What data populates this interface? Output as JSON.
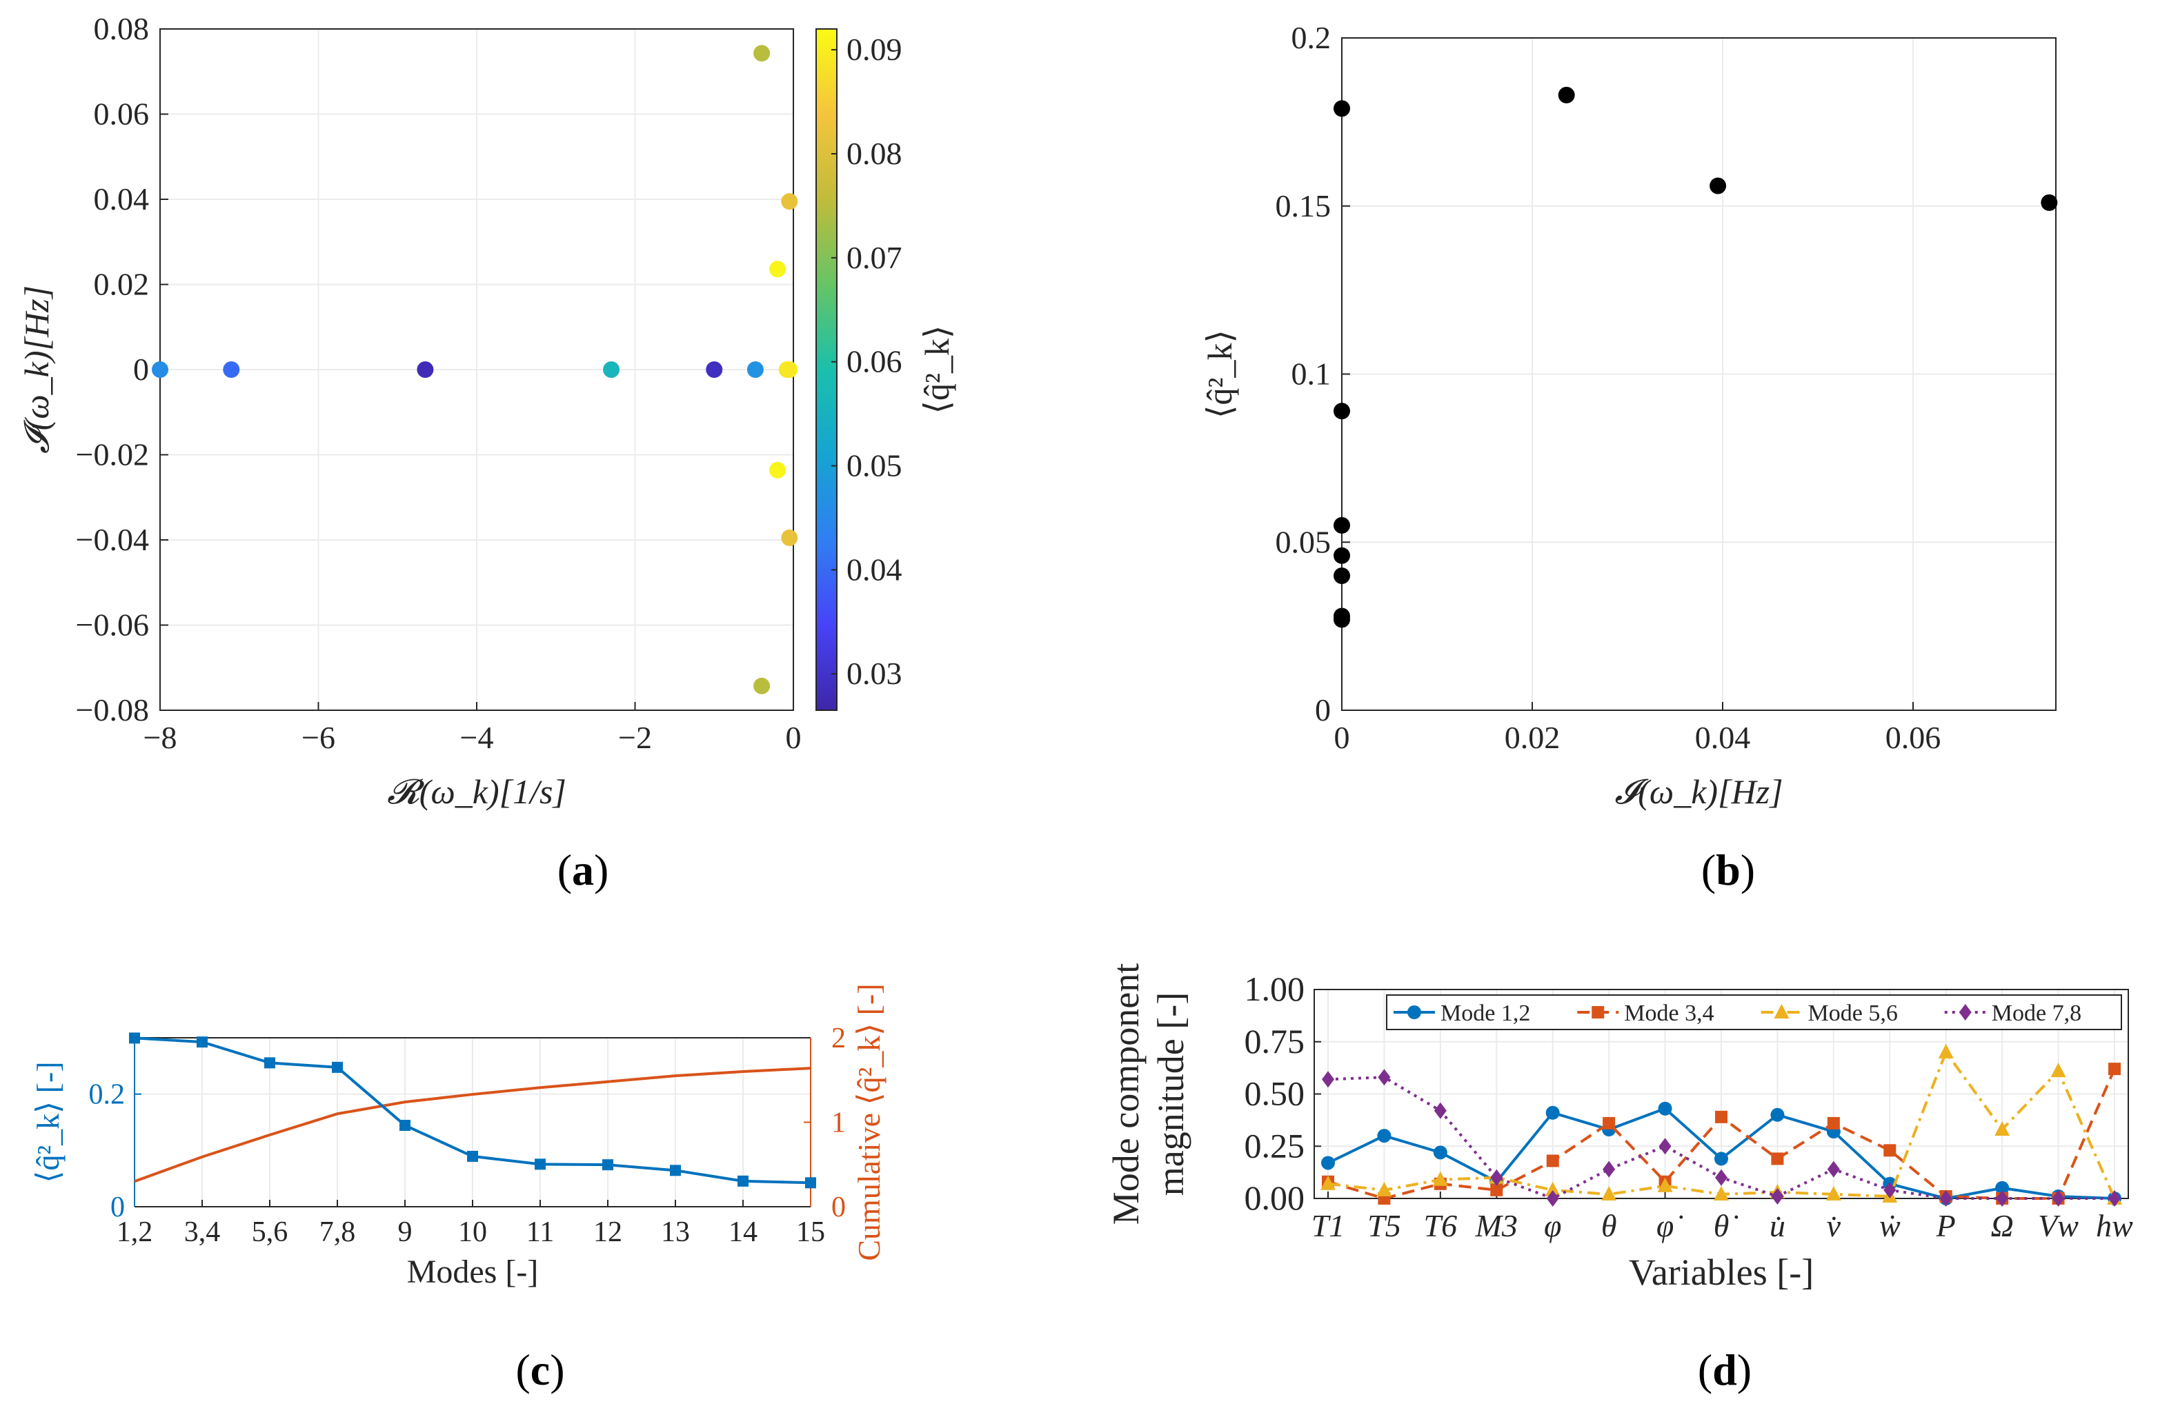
{
  "captions": {
    "a": "a",
    "b": "b",
    "c": "c",
    "d": "d"
  },
  "chart_data": [
    {
      "id": "a",
      "type": "scatter",
      "title": "",
      "xlabel": "𝓡(ω_k)[1/s]",
      "ylabel": "𝓘(ω_k)[Hz]",
      "xlim": [
        -8,
        0
      ],
      "ylim": [
        -0.08,
        0.08
      ],
      "xticks": [
        -8,
        -6,
        -4,
        -2,
        0
      ],
      "xtick_labels": [
        "−8",
        "−6",
        "−4",
        "−2",
        "0"
      ],
      "yticks": [
        -0.08,
        -0.06,
        -0.04,
        -0.02,
        0,
        0.02,
        0.04,
        0.06,
        0.08
      ],
      "ytick_labels": [
        "−0.08",
        "−0.06",
        "−0.04",
        "−0.02",
        "0",
        "0.02",
        "0.04",
        "0.06",
        "0.08"
      ],
      "grid": true,
      "points": [
        {
          "x": -8.0,
          "y": 0,
          "c": 0.046
        },
        {
          "x": -7.1,
          "y": 0,
          "c": 0.04
        },
        {
          "x": -4.65,
          "y": 0,
          "c": 0.028
        },
        {
          "x": -2.3,
          "y": 0,
          "c": 0.056
        },
        {
          "x": -1.0,
          "y": 0,
          "c": 0.029
        },
        {
          "x": -0.48,
          "y": 0,
          "c": 0.047
        },
        {
          "x": -0.05,
          "y": 0,
          "c": 0.09
        },
        {
          "x": -0.08,
          "y": 0,
          "c": 0.089
        },
        {
          "x": -0.4,
          "y": 0.0743,
          "c": 0.075
        },
        {
          "x": -0.4,
          "y": -0.0743,
          "c": 0.075
        },
        {
          "x": -0.05,
          "y": 0.0395,
          "c": 0.082
        },
        {
          "x": -0.05,
          "y": -0.0395,
          "c": 0.082
        },
        {
          "x": -0.2,
          "y": 0.0236,
          "c": 0.091
        },
        {
          "x": -0.2,
          "y": -0.0236,
          "c": 0.091
        }
      ],
      "colorbar": {
        "label": "⟨q̂²_k⟩",
        "range": [
          0.0265,
          0.092
        ],
        "ticks": [
          0.03,
          0.04,
          0.05,
          0.06,
          0.07,
          0.08,
          0.09
        ],
        "tick_labels": [
          "0.03",
          "0.04",
          "0.05",
          "0.06",
          "0.07",
          "0.08",
          "0.09"
        ],
        "colormap": [
          "#3e26a8",
          "#4743f8",
          "#2f7ff2",
          "#16a4d2",
          "#1ac0ab",
          "#66c465",
          "#c0bc3a",
          "#f5c43c",
          "#f9fb15"
        ]
      }
    },
    {
      "id": "b",
      "type": "scatter",
      "title": "",
      "xlabel": "𝓘(ω_k)[Hz]",
      "ylabel": "⟨q̂²_k⟩",
      "xlim": [
        0,
        0.075
      ],
      "ylim": [
        0,
        0.2
      ],
      "xticks": [
        0,
        0.02,
        0.04,
        0.06
      ],
      "xtick_labels": [
        "0",
        "0.02",
        "0.04",
        "0.06"
      ],
      "yticks": [
        0,
        0.05,
        0.1,
        0.15,
        0.2
      ],
      "ytick_labels": [
        "0",
        "0.05",
        "0.1",
        "0.15",
        "0.2"
      ],
      "grid": true,
      "color": "#000000",
      "points": [
        {
          "x": 0,
          "y": 0.179
        },
        {
          "x": 0.0236,
          "y": 0.183
        },
        {
          "x": 0.0395,
          "y": 0.156
        },
        {
          "x": 0.0743,
          "y": 0.151
        },
        {
          "x": 0,
          "y": 0.089
        },
        {
          "x": 0,
          "y": 0.055
        },
        {
          "x": 0,
          "y": 0.046
        },
        {
          "x": 0,
          "y": 0.04
        },
        {
          "x": 0,
          "y": 0.028
        },
        {
          "x": 0,
          "y": 0.027
        }
      ]
    },
    {
      "id": "c",
      "type": "line",
      "title": "",
      "xlabel": "Modes [-]",
      "ylabel": "⟨q̂²_k⟩ [-]",
      "ylabel_right": "Cumulative ⟨q̂²_k⟩ [-]",
      "categories": [
        "1,2",
        "3,4",
        "5,6",
        "7,8",
        "9",
        "10",
        "11",
        "12",
        "13",
        "14",
        "15"
      ],
      "ylim": [
        0,
        0.3
      ],
      "ylim_right": [
        0,
        2
      ],
      "yticks": [
        0,
        0.2
      ],
      "ytick_labels": [
        "0",
        "0.2"
      ],
      "yticks_right": [
        0,
        1,
        2
      ],
      "ytick_labels_right": [
        "0",
        "1",
        "2"
      ],
      "grid": true,
      "series": [
        {
          "name": "⟨q̂²_k⟩",
          "axis": "left",
          "color": "#0072bd",
          "marker": "square",
          "values": [
            0.2995,
            0.2925,
            0.2555,
            0.2475,
            0.1445,
            0.0895,
            0.0755,
            0.0745,
            0.0645,
            0.0455,
            0.0425
          ]
        },
        {
          "name": "Cumulative",
          "axis": "right",
          "color": "#d95319",
          "marker": "none",
          "values": [
            0.3,
            0.59,
            0.85,
            1.1,
            1.24,
            1.33,
            1.41,
            1.48,
            1.55,
            1.6,
            1.64
          ]
        }
      ]
    },
    {
      "id": "d",
      "type": "line",
      "title": "",
      "xlabel": "Variables [-]",
      "ylabel": "Mode component magnitude [-]",
      "ylabel_lines": [
        "Mode component",
        "magnitude [-]"
      ],
      "categories": [
        "T1",
        "T5",
        "T6",
        "M3",
        "φ",
        "θ",
        "φ̇",
        "θ̇",
        "u̇",
        "v̇",
        "ẇ",
        "P",
        "Ω",
        "Vw",
        "hw"
      ],
      "ylim": [
        0,
        1.0
      ],
      "yticks": [
        0,
        0.25,
        0.5,
        0.75,
        1.0
      ],
      "ytick_labels": [
        "0.00",
        "0.25",
        "0.50",
        "0.75",
        "1.00"
      ],
      "grid": true,
      "legend": "top",
      "series": [
        {
          "name": "Mode 1,2",
          "color": "#0072bd",
          "dash": "solid",
          "marker": "circle",
          "values": [
            0.17,
            0.3,
            0.22,
            0.08,
            0.41,
            0.33,
            0.43,
            0.19,
            0.4,
            0.32,
            0.07,
            0.0,
            0.05,
            0.01,
            0.0
          ]
        },
        {
          "name": "Mode 3,4",
          "color": "#d95319",
          "dash": "dashed",
          "marker": "square",
          "values": [
            0.08,
            0.0,
            0.07,
            0.04,
            0.18,
            0.36,
            0.08,
            0.39,
            0.19,
            0.36,
            0.23,
            0.01,
            0.0,
            0.0,
            0.62
          ]
        },
        {
          "name": "Mode 5,6",
          "color": "#edb120",
          "dash": "dashdot",
          "marker": "triangle",
          "values": [
            0.07,
            0.04,
            0.09,
            0.1,
            0.04,
            0.02,
            0.06,
            0.02,
            0.03,
            0.02,
            0.01,
            0.7,
            0.33,
            0.61,
            0.0
          ]
        },
        {
          "name": "Mode 7,8",
          "color": "#7e2f8e",
          "dash": "dotted",
          "marker": "diamond",
          "values": [
            0.57,
            0.58,
            0.42,
            0.1,
            0.0,
            0.14,
            0.25,
            0.1,
            0.01,
            0.14,
            0.04,
            0.0,
            0.0,
            0.0,
            0.0
          ]
        }
      ]
    }
  ]
}
